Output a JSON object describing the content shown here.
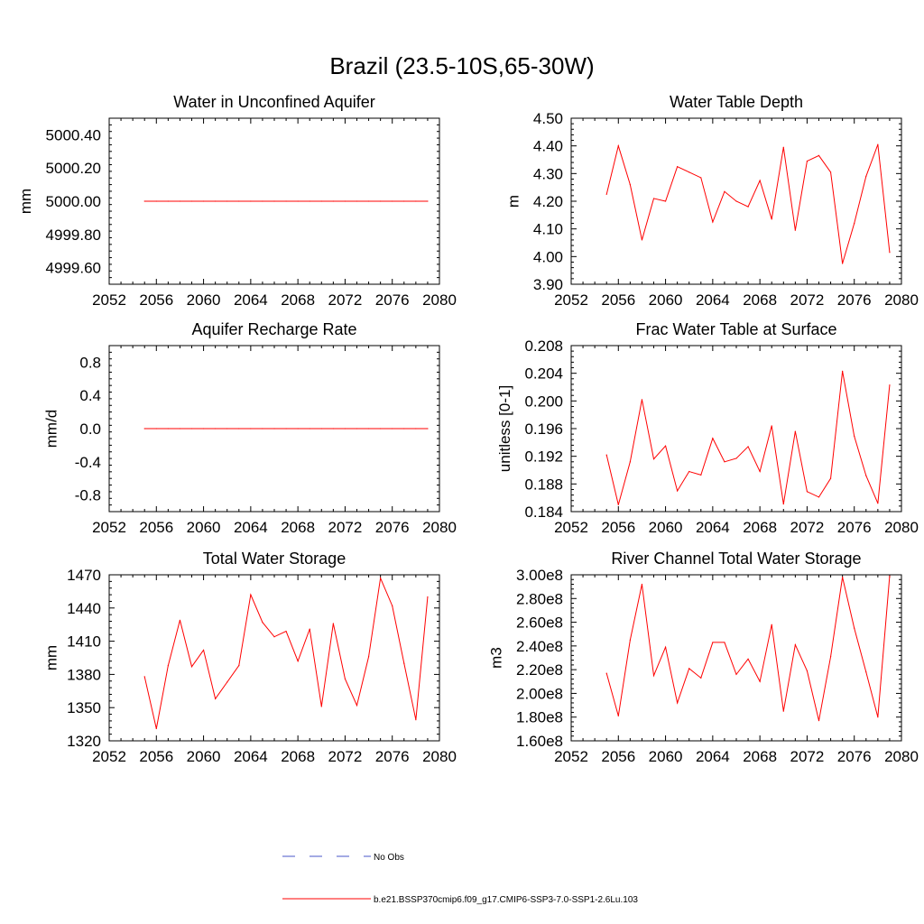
{
  "figure": {
    "title": "Brazil (23.5-10S,65-30W)"
  },
  "legend": {
    "entries": [
      {
        "label": "No Obs",
        "color": "#4a55c8",
        "style": "dashed"
      },
      {
        "label": "b.e21.BSSP370cmip6.f09_g17.CMIP6-SSP3-7.0-SSP1-2.6Lu.103",
        "color": "#ff0000",
        "style": "solid"
      }
    ]
  },
  "chart_data": [
    {
      "type": "line",
      "title": "Water in Unconfined Aquifer",
      "ylabel": "mm",
      "xlabel": "",
      "xlim": [
        2052,
        2080
      ],
      "ylim": [
        4999.5,
        5000.5
      ],
      "x_ticks": [
        2052,
        2056,
        2060,
        2064,
        2068,
        2072,
        2076,
        2080
      ],
      "x_tick_labels": [
        "2052",
        "2056",
        "2060",
        "2064",
        "2068",
        "2072",
        "2076",
        "2080"
      ],
      "y_ticks": [
        4999.6,
        4999.8,
        5000.0,
        5000.2,
        5000.4
      ],
      "y_tick_labels": [
        "4999.60",
        "4999.80",
        "5000.00",
        "5000.20",
        "5000.40"
      ],
      "series": [
        {
          "color": "#ff0000",
          "x": [
            2055,
            2056,
            2057,
            2058,
            2059,
            2060,
            2061,
            2062,
            2063,
            2064,
            2065,
            2066,
            2067,
            2068,
            2069,
            2070,
            2071,
            2072,
            2073,
            2074,
            2075,
            2076,
            2077,
            2078,
            2079
          ],
          "y": [
            5000,
            5000,
            5000,
            5000,
            5000,
            5000,
            5000,
            5000,
            5000,
            5000,
            5000,
            5000,
            5000,
            5000,
            5000,
            5000,
            5000,
            5000,
            5000,
            5000,
            5000,
            5000,
            5000,
            5000,
            5000
          ]
        }
      ]
    },
    {
      "type": "line",
      "title": "Water Table Depth",
      "ylabel": "m",
      "xlabel": "",
      "xlim": [
        2052,
        2080
      ],
      "ylim": [
        3.9,
        4.5
      ],
      "x_ticks": [
        2052,
        2056,
        2060,
        2064,
        2068,
        2072,
        2076,
        2080
      ],
      "x_tick_labels": [
        "2052",
        "2056",
        "2060",
        "2064",
        "2068",
        "2072",
        "2076",
        "2080"
      ],
      "y_ticks": [
        3.9,
        4.0,
        4.1,
        4.2,
        4.3,
        4.4,
        4.5
      ],
      "y_tick_labels": [
        "3.90",
        "4.00",
        "4.10",
        "4.20",
        "4.30",
        "4.40",
        "4.50"
      ],
      "series": [
        {
          "color": "#ff0000",
          "x": [
            2055,
            2056,
            2057,
            2058,
            2059,
            2060,
            2061,
            2062,
            2063,
            2064,
            2065,
            2066,
            2067,
            2068,
            2069,
            2070,
            2071,
            2072,
            2073,
            2074,
            2075,
            2076,
            2077,
            2078,
            2079
          ],
          "y": [
            4.225,
            4.4,
            4.26,
            4.06,
            4.21,
            4.2,
            4.325,
            4.305,
            4.285,
            4.125,
            4.235,
            4.2,
            4.18,
            4.275,
            4.135,
            4.395,
            4.095,
            4.345,
            4.365,
            4.305,
            3.975,
            4.12,
            4.29,
            4.405,
            4.015
          ]
        }
      ]
    },
    {
      "type": "line",
      "title": "Aquifer Recharge Rate",
      "ylabel": "mm/d",
      "xlabel": "",
      "xlim": [
        2052,
        2080
      ],
      "ylim": [
        -1.0,
        1.0
      ],
      "x_ticks": [
        2052,
        2056,
        2060,
        2064,
        2068,
        2072,
        2076,
        2080
      ],
      "x_tick_labels": [
        "2052",
        "2056",
        "2060",
        "2064",
        "2068",
        "2072",
        "2076",
        "2080"
      ],
      "y_ticks": [
        -0.8,
        -0.4,
        0.0,
        0.4,
        0.8
      ],
      "y_tick_labels": [
        "-0.8",
        "-0.4",
        "0.0",
        "0.4",
        "0.8"
      ],
      "series": [
        {
          "color": "#ff0000",
          "x": [
            2055,
            2056,
            2057,
            2058,
            2059,
            2060,
            2061,
            2062,
            2063,
            2064,
            2065,
            2066,
            2067,
            2068,
            2069,
            2070,
            2071,
            2072,
            2073,
            2074,
            2075,
            2076,
            2077,
            2078,
            2079
          ],
          "y": [
            0,
            0,
            0,
            0,
            0,
            0,
            0,
            0,
            0,
            0,
            0,
            0,
            0,
            0,
            0,
            0,
            0,
            0,
            0,
            0,
            0,
            0,
            0,
            0,
            0
          ]
        }
      ]
    },
    {
      "type": "line",
      "title": "Frac Water Table at Surface",
      "ylabel": "unitless [0-1]",
      "xlabel": "",
      "xlim": [
        2052,
        2080
      ],
      "ylim": [
        0.184,
        0.208
      ],
      "x_ticks": [
        2052,
        2056,
        2060,
        2064,
        2068,
        2072,
        2076,
        2080
      ],
      "x_tick_labels": [
        "2052",
        "2056",
        "2060",
        "2064",
        "2068",
        "2072",
        "2076",
        "2080"
      ],
      "y_ticks": [
        0.184,
        0.188,
        0.192,
        0.196,
        0.2,
        0.204,
        0.208
      ],
      "y_tick_labels": [
        "0.184",
        "0.188",
        "0.192",
        "0.196",
        "0.200",
        "0.204",
        "0.208"
      ],
      "series": [
        {
          "color": "#ff0000",
          "x": [
            2055,
            2056,
            2057,
            2058,
            2059,
            2060,
            2061,
            2062,
            2063,
            2064,
            2065,
            2066,
            2067,
            2068,
            2069,
            2070,
            2071,
            2072,
            2073,
            2074,
            2075,
            2076,
            2077,
            2078,
            2079
          ],
          "y": [
            0.1922,
            0.185,
            0.1912,
            0.2002,
            0.1916,
            0.1935,
            0.187,
            0.1898,
            0.1893,
            0.1946,
            0.1912,
            0.1917,
            0.1934,
            0.1898,
            0.1964,
            0.1851,
            0.1956,
            0.1869,
            0.1861,
            0.1888,
            0.2043,
            0.1949,
            0.1892,
            0.1852,
            0.2023
          ]
        }
      ]
    },
    {
      "type": "line",
      "title": "Total Water Storage",
      "ylabel": "mm",
      "xlabel": "",
      "xlim": [
        2052,
        2080
      ],
      "ylim": [
        1320,
        1470
      ],
      "x_ticks": [
        2052,
        2056,
        2060,
        2064,
        2068,
        2072,
        2076,
        2080
      ],
      "x_tick_labels": [
        "2052",
        "2056",
        "2060",
        "2064",
        "2068",
        "2072",
        "2076",
        "2080"
      ],
      "y_ticks": [
        1320,
        1350,
        1380,
        1410,
        1440,
        1470
      ],
      "y_tick_labels": [
        "1320",
        "1350",
        "1380",
        "1410",
        "1440",
        "1470"
      ],
      "series": [
        {
          "color": "#ff0000",
          "x": [
            2055,
            2056,
            2057,
            2058,
            2059,
            2060,
            2061,
            2062,
            2063,
            2064,
            2065,
            2066,
            2067,
            2068,
            2069,
            2070,
            2071,
            2072,
            2073,
            2074,
            2075,
            2076,
            2077,
            2078,
            2079
          ],
          "y": [
            1378,
            1331,
            1388,
            1429,
            1387,
            1402,
            1358,
            1373,
            1388,
            1452,
            1427,
            1414,
            1419,
            1392,
            1421,
            1351,
            1426,
            1376,
            1352,
            1396,
            1467,
            1442,
            1390,
            1339,
            1450
          ]
        }
      ]
    },
    {
      "type": "line",
      "title": "River Channel Total Water Storage",
      "ylabel": "m3",
      "xlabel": "",
      "xlim": [
        2052,
        2080
      ],
      "ylim": [
        160000000,
        300000000
      ],
      "x_ticks": [
        2052,
        2056,
        2060,
        2064,
        2068,
        2072,
        2076,
        2080
      ],
      "x_tick_labels": [
        "2052",
        "2056",
        "2060",
        "2064",
        "2068",
        "2072",
        "2076",
        "2080"
      ],
      "y_ticks": [
        160000000,
        180000000,
        200000000,
        220000000,
        240000000,
        260000000,
        280000000,
        300000000
      ],
      "y_tick_labels": [
        "1.60e8",
        "1.80e8",
        "2.00e8",
        "2.20e8",
        "2.40e8",
        "2.60e8",
        "2.80e8",
        "3.00e8"
      ],
      "series": [
        {
          "color": "#ff0000",
          "x": [
            2055,
            2056,
            2057,
            2058,
            2059,
            2060,
            2061,
            2062,
            2063,
            2064,
            2065,
            2066,
            2067,
            2068,
            2069,
            2070,
            2071,
            2072,
            2073,
            2074,
            2075,
            2076,
            2077,
            2078,
            2079
          ],
          "y": [
            217000000,
            181000000,
            245000000,
            292000000,
            215000000,
            239000000,
            192000000,
            221000000,
            213000000,
            243000000,
            243000000,
            216000000,
            229000000,
            210000000,
            258000000,
            185000000,
            241000000,
            219000000,
            177000000,
            231000000,
            298000000,
            255000000,
            218000000,
            180000000,
            299000000
          ]
        }
      ]
    }
  ]
}
